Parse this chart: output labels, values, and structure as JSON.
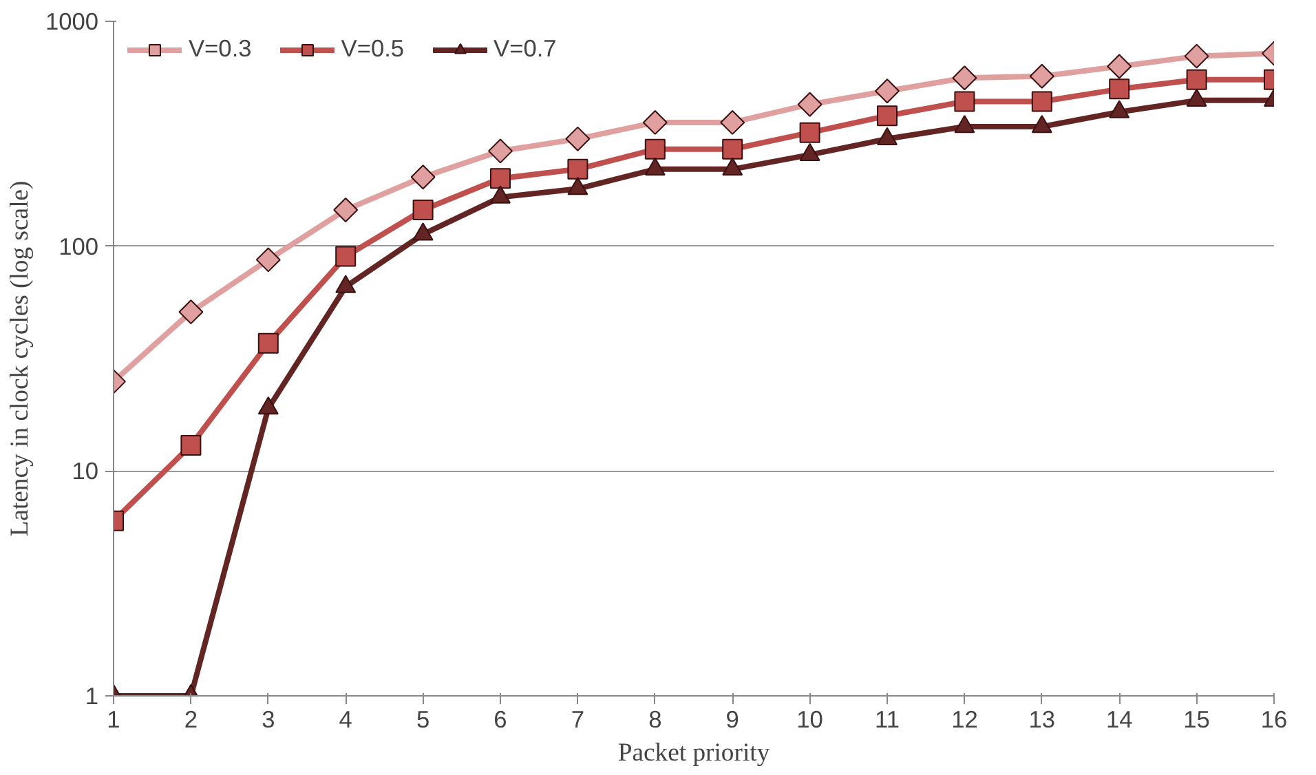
{
  "chart_data": {
    "type": "line",
    "xlabel": "Packet priority",
    "ylabel": "Latency in clock cycles (log scale)",
    "x": [
      1,
      2,
      3,
      4,
      5,
      6,
      7,
      8,
      9,
      10,
      11,
      12,
      13,
      14,
      15,
      16
    ],
    "xlim": [
      1,
      16
    ],
    "xticks": [
      1,
      2,
      3,
      4,
      5,
      6,
      7,
      8,
      9,
      10,
      11,
      12,
      13,
      14,
      15,
      16
    ],
    "ylim": [
      1,
      1000
    ],
    "yticks": [
      1,
      10,
      100,
      1000
    ],
    "log": "y",
    "grid": "y",
    "legend": "top left",
    "series": [
      {
        "name": "V=0.3",
        "color": "#e0a0a0",
        "marker": "diamond",
        "values": [
          25,
          51,
          87,
          145,
          203,
          265,
          300,
          355,
          355,
          427,
          490,
          560,
          570,
          630,
          700,
          720
        ]
      },
      {
        "name": "V=0.5",
        "color": "#c0504d",
        "marker": "square",
        "values": [
          6,
          13,
          37,
          90,
          145,
          200,
          220,
          270,
          270,
          320,
          380,
          440,
          440,
          500,
          550,
          550
        ]
      },
      {
        "name": "V=0.7",
        "color": "#632523",
        "marker": "triangle",
        "values": [
          1,
          1,
          19,
          66,
          113,
          165,
          180,
          220,
          220,
          255,
          300,
          340,
          340,
          395,
          445,
          445
        ]
      }
    ]
  }
}
